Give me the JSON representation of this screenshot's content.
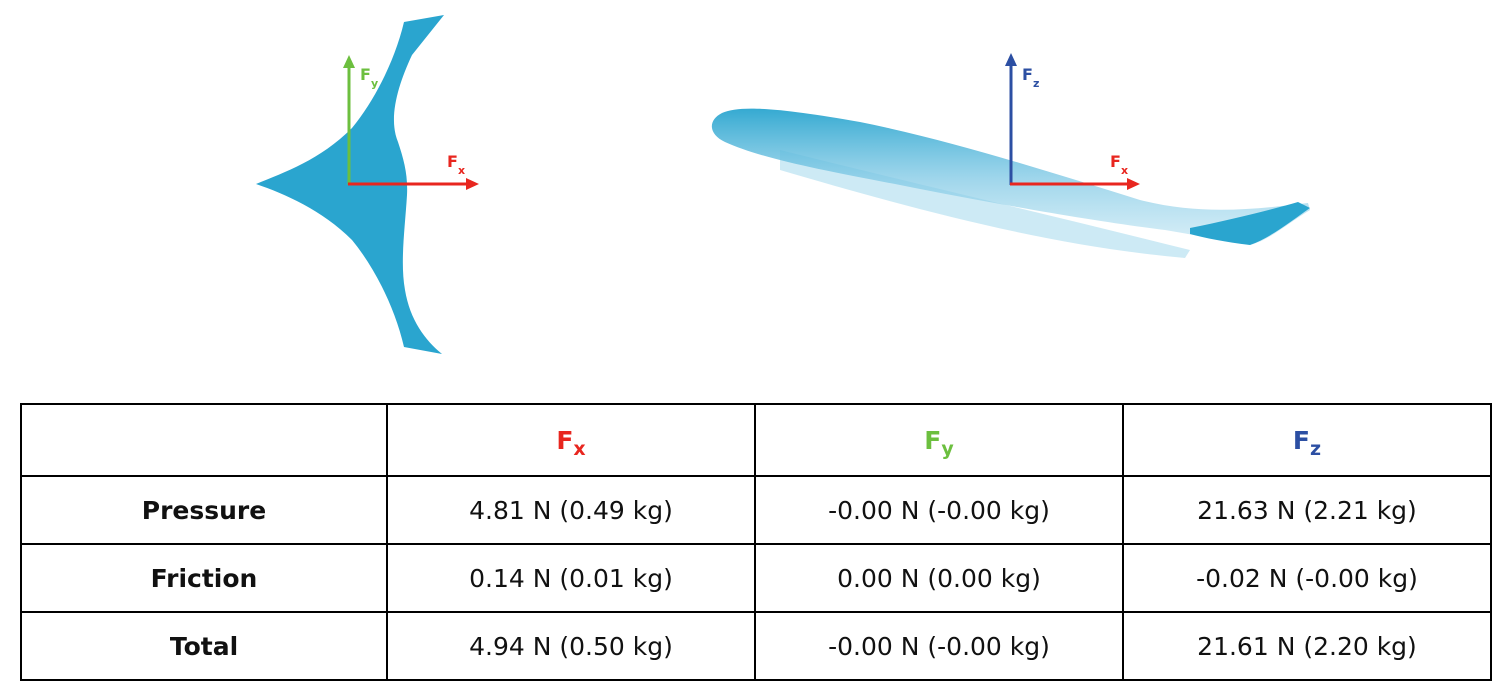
{
  "colors": {
    "fx": "#e8261f",
    "fy": "#6cbf3f",
    "fz": "#2c4fa3",
    "body": "#2aa5cf"
  },
  "figure": {
    "top_view": {
      "fy_label": {
        "base": "F",
        "sub": "y"
      },
      "fx_label": {
        "base": "F",
        "sub": "x"
      }
    },
    "side_view": {
      "fz_label": {
        "base": "F",
        "sub": "z"
      },
      "fx_label": {
        "base": "F",
        "sub": "x"
      }
    }
  },
  "table": {
    "columns": [
      {
        "base": "F",
        "sub": "x"
      },
      {
        "base": "F",
        "sub": "y"
      },
      {
        "base": "F",
        "sub": "z"
      }
    ],
    "rows": [
      {
        "label": "Pressure",
        "cells": [
          "4.81 N (0.49 kg)",
          "-0.00 N (-0.00 kg)",
          "21.63 N (2.21 kg)"
        ]
      },
      {
        "label": "Friction",
        "cells": [
          "0.14 N (0.01 kg)",
          "0.00 N (0.00 kg)",
          "-0.02 N (-0.00 kg)"
        ]
      },
      {
        "label": "Total",
        "cells": [
          "4.94 N (0.50 kg)",
          "-0.00 N (-0.00 kg)",
          "21.61 N (2.20 kg)"
        ]
      }
    ]
  }
}
